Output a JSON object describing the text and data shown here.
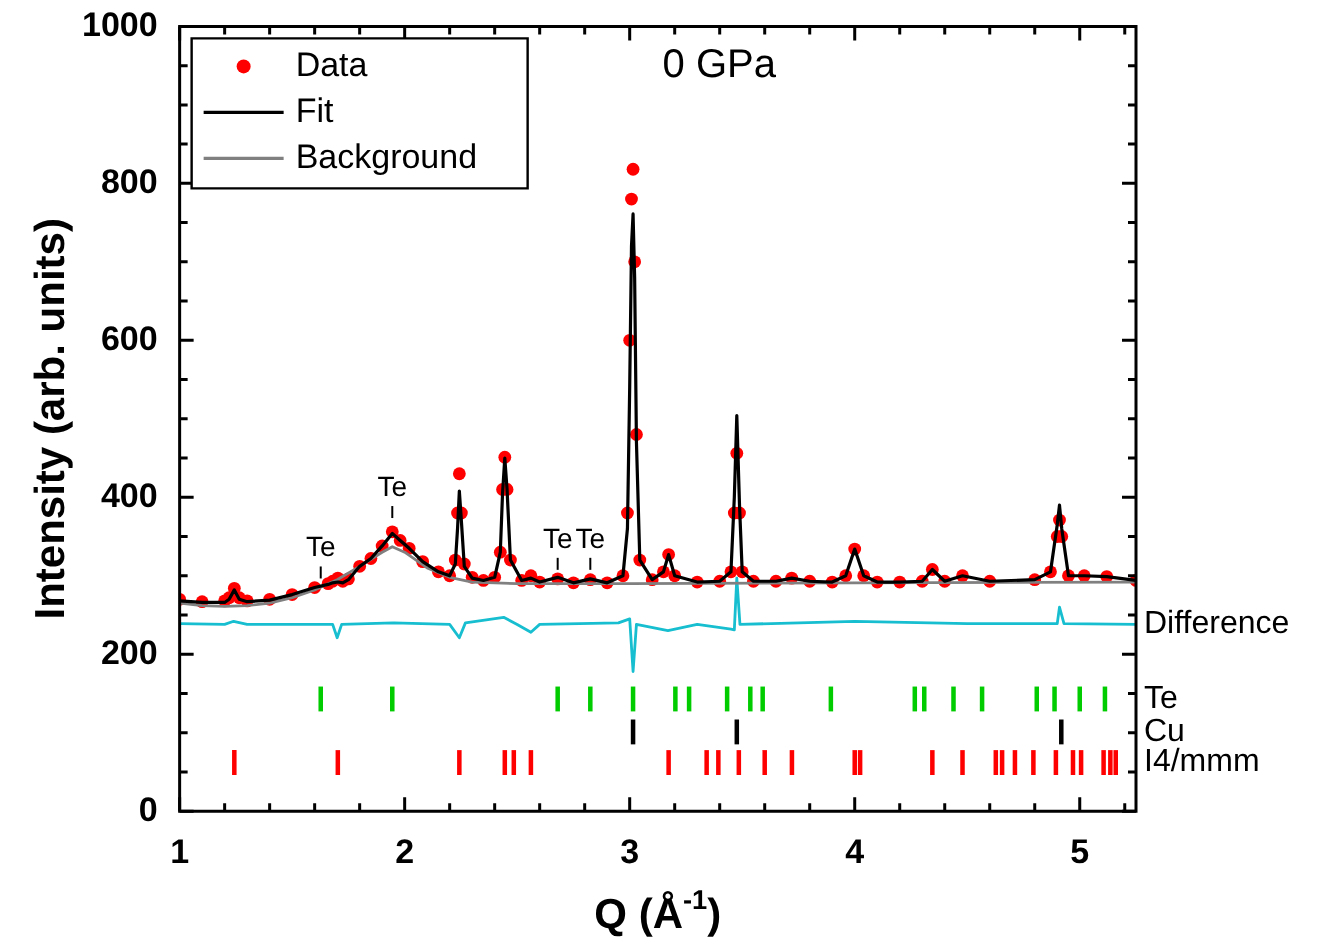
{
  "chart_data": {
    "type": "scatter",
    "xlabel": "Q (Å$^{-1}$)",
    "ylabel": "Intensity (arb. units)",
    "xlim": [
      1,
      5.25
    ],
    "ylim": [
      0,
      1000
    ],
    "xticks": [
      1,
      {
        "value": 1.2,
        "label": null
      },
      {
        "value": 1.4,
        "label": null
      },
      {
        "value": 1.6,
        "label": null
      },
      {
        "value": 1.8,
        "label": null
      },
      2,
      {
        "value": 2.2,
        "label": null
      },
      {
        "value": 2.4,
        "label": null
      },
      {
        "value": 2.6,
        "label": null
      },
      {
        "value": 2.8,
        "label": null
      },
      3,
      {
        "value": 3.2,
        "label": null
      },
      {
        "value": 3.4,
        "label": null
      },
      {
        "value": 3.6,
        "label": null
      },
      {
        "value": 3.8,
        "label": null
      },
      4,
      {
        "value": 4.2,
        "label": null
      },
      {
        "value": 4.4,
        "label": null
      },
      {
        "value": 4.6,
        "label": null
      },
      {
        "value": 4.8,
        "label": null
      },
      5,
      {
        "value": 5.2,
        "label": null
      }
    ],
    "yticks": [
      0,
      {
        "value": 50,
        "label": null
      },
      {
        "value": 100,
        "label": null
      },
      {
        "value": 150,
        "label": null
      },
      200,
      {
        "value": 250,
        "label": null
      },
      {
        "value": 300,
        "label": null
      },
      {
        "value": 350,
        "label": null
      },
      400,
      {
        "value": 450,
        "label": null
      },
      {
        "value": 500,
        "label": null
      },
      {
        "value": 550,
        "label": null
      },
      600,
      {
        "value": 650,
        "label": null
      },
      {
        "value": 700,
        "label": null
      },
      {
        "value": 750,
        "label": null
      },
      800,
      {
        "value": 850,
        "label": null
      },
      {
        "value": 900,
        "label": null
      },
      {
        "value": 950,
        "label": null
      },
      1000
    ],
    "grid": false,
    "legend": "top left",
    "annotations": [
      "0 GPa",
      {
        "text": "Te",
        "x": 1.627,
        "y": 294
      },
      {
        "text": "Te",
        "x": 1.945,
        "y": 371
      },
      {
        "text": "Te",
        "x": 2.68,
        "y": 305
      },
      {
        "text": "Te",
        "x": 2.825,
        "y": 305
      },
      "Difference",
      "Te",
      "Cu",
      "I4/mmm"
    ],
    "series": [
      {
        "name": "Data",
        "marker": "circle",
        "color": "#ff0000",
        "x": [
          1.0,
          1.1,
          1.2,
          1.22,
          1.243,
          1.265,
          1.3,
          1.4,
          1.5,
          1.6,
          1.66,
          1.68,
          1.703,
          1.725,
          1.75,
          1.8,
          1.85,
          1.9,
          1.945,
          1.98,
          2.02,
          2.08,
          2.15,
          2.2,
          2.225,
          2.235,
          2.243,
          2.252,
          2.265,
          2.3,
          2.35,
          2.4,
          2.425,
          2.435,
          2.445,
          2.455,
          2.47,
          2.52,
          2.561,
          2.6,
          2.68,
          2.75,
          2.825,
          2.9,
          2.97,
          2.99,
          3.0,
          3.008,
          3.015,
          3.022,
          3.03,
          3.045,
          3.1,
          3.15,
          3.173,
          3.2,
          3.3,
          3.4,
          3.45,
          3.465,
          3.476,
          3.488,
          3.5,
          3.55,
          3.65,
          3.72,
          3.8,
          3.9,
          3.96,
          4.0,
          4.04,
          4.1,
          4.2,
          4.3,
          4.345,
          4.4,
          4.479,
          4.6,
          4.8,
          4.87,
          4.9,
          4.91,
          4.92,
          4.95,
          5.02,
          5.12,
          5.25
        ],
        "values": [
          270,
          267,
          268,
          272,
          284,
          272,
          268,
          270,
          276,
          285,
          290,
          293,
          297,
          293,
          296,
          312,
          322,
          338,
          356,
          345,
          335,
          318,
          305,
          300,
          320,
          380,
          430,
          380,
          315,
          298,
          294,
          298,
          330,
          410,
          451,
          410,
          320,
          294,
          300,
          292,
          296,
          291,
          295,
          291,
          300,
          380,
          600,
          780,
          818,
          700,
          480,
          320,
          295,
          305,
          327,
          300,
          292,
          293,
          305,
          380,
          456,
          380,
          305,
          293,
          293,
          297,
          293,
          292,
          300,
          334,
          300,
          292,
          292,
          293,
          308,
          293,
          300,
          293,
          295,
          305,
          350,
          371,
          350,
          300,
          300,
          299,
          294
        ]
      },
      {
        "name": "Fit",
        "type": "line",
        "line_style": "solid",
        "color": "#000000",
        "x": [
          1.0,
          1.1,
          1.2,
          1.22,
          1.243,
          1.265,
          1.3,
          1.4,
          1.5,
          1.6,
          1.66,
          1.68,
          1.703,
          1.725,
          1.75,
          1.8,
          1.85,
          1.9,
          1.945,
          1.98,
          2.02,
          2.08,
          2.15,
          2.2,
          2.225,
          2.235,
          2.243,
          2.252,
          2.265,
          2.3,
          2.35,
          2.4,
          2.425,
          2.435,
          2.445,
          2.455,
          2.47,
          2.52,
          2.561,
          2.6,
          2.68,
          2.75,
          2.825,
          2.9,
          2.97,
          2.99,
          3.0,
          3.008,
          3.015,
          3.022,
          3.03,
          3.045,
          3.1,
          3.15,
          3.173,
          3.2,
          3.3,
          3.4,
          3.45,
          3.465,
          3.476,
          3.488,
          3.5,
          3.55,
          3.65,
          3.72,
          3.8,
          3.9,
          3.96,
          4.0,
          4.04,
          4.1,
          4.2,
          4.3,
          4.345,
          4.4,
          4.479,
          4.6,
          4.8,
          4.87,
          4.9,
          4.91,
          4.92,
          4.95,
          5.02,
          5.12,
          5.25
        ],
        "values": [
          268,
          266,
          266,
          270,
          282,
          270,
          267,
          269,
          276,
          285,
          289,
          291,
          292,
          291,
          295,
          312,
          322,
          338,
          354,
          345,
          335,
          318,
          305,
          300,
          315,
          360,
          408,
          370,
          312,
          297,
          294,
          298,
          330,
          405,
          450,
          410,
          320,
          294,
          297,
          292,
          298,
          291,
          296,
          291,
          300,
          360,
          540,
          720,
          761,
          680,
          470,
          320,
          295,
          305,
          327,
          300,
          292,
          293,
          305,
          400,
          504,
          390,
          305,
          293,
          293,
          297,
          293,
          292,
          300,
          334,
          300,
          292,
          292,
          293,
          308,
          293,
          300,
          293,
          295,
          305,
          365,
          390,
          360,
          300,
          300,
          299,
          294
        ]
      },
      {
        "name": "Background",
        "type": "line",
        "line_style": "solid",
        "color": "#808080",
        "x": [
          1.0,
          1.1,
          1.2,
          1.3,
          1.4,
          1.5,
          1.6,
          1.7,
          1.8,
          1.9,
          1.945,
          2.0,
          2.1,
          2.2,
          2.3,
          2.5,
          3.0,
          4.0,
          5.25
        ],
        "values": [
          265,
          262,
          261,
          262,
          265,
          272,
          282,
          295,
          312,
          330,
          337,
          330,
          310,
          298,
          292,
          290,
          290,
          291,
          292
        ]
      },
      {
        "type": "line",
        "line_style": "solid",
        "color": "#17becf",
        "x": [
          1.0,
          1.2,
          1.24,
          1.3,
          1.6,
          1.68,
          1.7,
          1.72,
          1.95,
          2.2,
          2.243,
          2.27,
          2.44,
          2.5,
          2.561,
          2.6,
          2.95,
          3.0,
          3.015,
          3.03,
          3.17,
          3.3,
          3.45,
          3.465,
          3.476,
          3.49,
          4.0,
          4.5,
          4.9,
          4.91,
          4.93,
          5.25
        ],
        "values": [
          239,
          238,
          242,
          238,
          238,
          238,
          221,
          238,
          240,
          238,
          221,
          240,
          247,
          238,
          228,
          238,
          240,
          245,
          178,
          238,
          230,
          238,
          232,
          231,
          297,
          238,
          242,
          239,
          239,
          260,
          239,
          238
        ]
      },
      {
        "type": "bar",
        "color": "#00cc00",
        "base": [
          128,
          128,
          128,
          128,
          128,
          128,
          128,
          128,
          128,
          128,
          128,
          128,
          128,
          128,
          128,
          128,
          128,
          128,
          128
        ],
        "x": [
          1.627,
          1.945,
          2.68,
          2.825,
          3.015,
          3.203,
          3.264,
          3.433,
          3.536,
          3.591,
          3.894,
          4.267,
          4.309,
          4.439,
          4.566,
          4.809,
          4.888,
          5.0,
          5.112
        ],
        "values": [
          30,
          30,
          30,
          30,
          30,
          30,
          30,
          30,
          30,
          30,
          30,
          30,
          30,
          30,
          30,
          30,
          30,
          30,
          30
        ]
      },
      {
        "type": "bar",
        "color": "#000000",
        "x": [
          3.015,
          3.476,
          4.918
        ],
        "base": [
          86,
          86,
          86
        ],
        "values": [
          30,
          30,
          30
        ]
      },
      {
        "type": "bar",
        "color": "#ff0000",
        "base": [
          47,
          47,
          47,
          47,
          47,
          47,
          47,
          47,
          47,
          47,
          47,
          47,
          47,
          47,
          47,
          47,
          47,
          47,
          47,
          47,
          47,
          47,
          47,
          47,
          47,
          47
        ],
        "x": [
          1.243,
          1.703,
          2.243,
          2.445,
          2.485,
          2.561,
          3.173,
          3.342,
          3.394,
          3.485,
          3.6,
          3.721,
          4.0,
          4.024,
          4.345,
          4.479,
          4.627,
          4.655,
          4.712,
          4.794,
          4.894,
          4.97,
          5.006,
          5.106,
          5.136,
          5.16
        ],
        "values": [
          30,
          30,
          30,
          30,
          30,
          30,
          30,
          30,
          30,
          30,
          30,
          30,
          30,
          30,
          30,
          30,
          30,
          30,
          30,
          30,
          30,
          30,
          30,
          30,
          30,
          30
        ]
      }
    ]
  }
}
